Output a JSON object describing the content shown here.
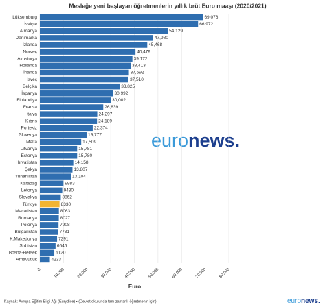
{
  "chart_data": {
    "type": "barh",
    "title": "Mesleğe yeni başlayan öğretmenlerin yıllık brüt Euro maaşı (2020/2021)",
    "categories": [
      "Lüksemburg",
      "İsviçre",
      "Almanya",
      "Danimarka",
      "İzlanda",
      "Norveç",
      "Avusturya",
      "Hollanda",
      "İrlanda",
      "İsveç",
      "Belçika",
      "İspanya",
      "Finlandiya",
      "Fransa",
      "İtalya",
      "Kıbrıs",
      "Portekiz",
      "Slovenya",
      "Malta",
      "Litvanya",
      "Estonya",
      "Hırvatistan",
      "Çekya",
      "Yunanistan",
      "Karadağ",
      "Letonya",
      "Slovakya",
      "Türkiye",
      "Macaristan",
      "Romanya",
      "Polonya",
      "Bulgaristan",
      "K.Makedonya",
      "Sırbistan",
      "Bosna-Hersek",
      "Arnavutluk"
    ],
    "values": [
      69076,
      66972,
      54129,
      47980,
      45468,
      40479,
      39172,
      38413,
      37692,
      37510,
      33825,
      30992,
      30002,
      26839,
      24297,
      24189,
      22374,
      19777,
      17509,
      15781,
      15780,
      14158,
      13807,
      13104,
      9983,
      9480,
      8862,
      8330,
      8063,
      8027,
      7908,
      7731,
      7291,
      6646,
      6120,
      4233
    ],
    "value_labels": [
      "69,076",
      "66,972",
      "54,129",
      "47,980",
      "45,468",
      "40,479",
      "39,172",
      "38,413",
      "37,692",
      "37,510",
      "33,825",
      "30,992",
      "30,002",
      "26,839",
      "24,297",
      "24,189",
      "22,374",
      "19,777",
      "17,509",
      "15,781",
      "15,780",
      "14,158",
      "13,807",
      "13,104",
      "9983",
      "9480",
      "8862",
      "8330",
      "8063",
      "8027",
      "7908",
      "7731",
      "7291",
      "6646",
      "6120",
      "4233"
    ],
    "color": "#2f6eb0",
    "highlight": {
      "category": "Türkiye",
      "color": "#f2b431"
    },
    "xlim": [
      0,
      80000
    ],
    "xticks": [
      0,
      {
        "value": 10000,
        "label": "10,000"
      },
      {
        "value": 20000,
        "label": "20,000"
      },
      {
        "value": 30000,
        "label": "30,000"
      },
      {
        "value": 40000,
        "label": "40,000"
      },
      {
        "value": 50000,
        "label": "50,000"
      },
      {
        "value": 60000,
        "label": "60,000"
      },
      {
        "value": 70000,
        "label": "70,000"
      },
      {
        "value": 80000,
        "label": "80,000"
      }
    ],
    "xlabel": "Euro",
    "grid": true,
    "source": "Kaynak: Avrupa Eğitim Bilgi Ağı (Eurydice) • (Devlet okulunda tam zamanlı öğretmenin için)",
    "logo": {
      "light": "euro",
      "bold": "news."
    }
  }
}
